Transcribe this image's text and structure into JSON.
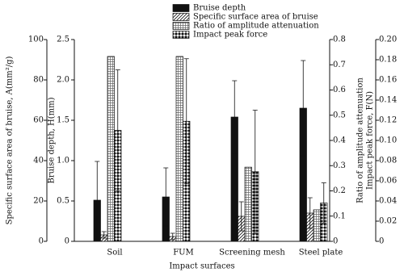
{
  "chart_data": {
    "type": "bar",
    "x_label": "Impact surfaces",
    "categories": [
      "Soil",
      "FUM",
      "Screening mesh",
      "Steel plate"
    ],
    "y_label": "Bruise depth, H(mm)",
    "ylim": [
      0,
      2.5
    ],
    "yticks": [
      0,
      0.5,
      {
        "value": 1,
        "label": "1.0"
      },
      1.5,
      {
        "value": 2,
        "label": "2.0"
      },
      2.5
    ],
    "y2_label": "Specific surface area of bruise, A(mm²/g)",
    "y2lim": [
      0,
      100
    ],
    "y2ticks": [
      0,
      20,
      40,
      60,
      80,
      100
    ],
    "y3_label": "Ratio of amplitude attenuation",
    "y3lim": [
      0,
      0.8
    ],
    "y3ticks": [
      0,
      0.1,
      0.2,
      0.3,
      0.4,
      0.5,
      0.6,
      0.7,
      0.8
    ],
    "y4_label": "Impact peak force, F(N)",
    "y4lim": [
      0,
      0.2
    ],
    "y4ticks": [
      0,
      0.02,
      0.04,
      0.06,
      0.08,
      {
        "value": 0.1,
        "label": "0.10"
      },
      0.12,
      0.14,
      0.16,
      0.18,
      {
        "value": 0.2,
        "label": "0.20"
      }
    ],
    "series": [
      {
        "name": "Bruise depth",
        "axis": "y",
        "color": "#111111",
        "pattern": "solid",
        "values": [
          0.51,
          0.55,
          1.54,
          1.65
        ],
        "errors": [
          0.48,
          0.36,
          0.45,
          0.59
        ]
      },
      {
        "name": "Specific surface area of bruise",
        "axis": "y2",
        "color": "#111111",
        "pattern": "diagonal",
        "values": [
          3.2,
          2.4,
          12.4,
          14
        ],
        "errors": [
          1.6,
          1.6,
          7.2,
          7.6
        ]
      },
      {
        "name": "Ratio of amplitude attenuation",
        "axis": "y3",
        "color": "#111111",
        "pattern": "crosshatch",
        "values": [
          0.733,
          0.733,
          0.294,
          0.125
        ]
      },
      {
        "name": "Impact peak force",
        "axis": "y4",
        "color": "#111111",
        "pattern": "checker",
        "values": [
          0.11,
          0.119,
          0.069,
          0.038
        ],
        "errors": [
          0.06,
          0.062,
          0.061,
          0.02
        ]
      }
    ]
  }
}
